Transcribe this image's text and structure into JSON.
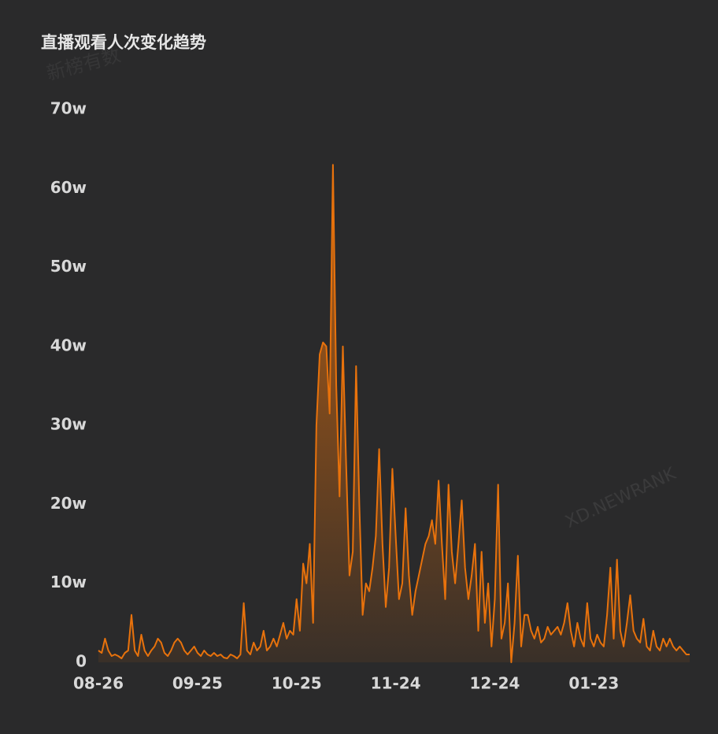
{
  "chart_data": {
    "type": "area",
    "title": "直播观看人次变化趋势",
    "watermarks": [
      "新榜有数",
      "XD.NEWRANK"
    ],
    "categories": [
      "08-26",
      null,
      null,
      null,
      null,
      null,
      null,
      null,
      null,
      null,
      null,
      null,
      null,
      null,
      null,
      null,
      null,
      null,
      null,
      null,
      null,
      null,
      null,
      null,
      null,
      null,
      null,
      null,
      null,
      null,
      "09-25",
      null,
      null,
      null,
      null,
      null,
      null,
      null,
      null,
      null,
      null,
      null,
      null,
      null,
      null,
      null,
      null,
      null,
      null,
      null,
      null,
      null,
      null,
      null,
      null,
      null,
      null,
      null,
      null,
      null,
      "10-25",
      null,
      null,
      null,
      null,
      null,
      null,
      null,
      null,
      null,
      null,
      null,
      null,
      null,
      null,
      null,
      null,
      null,
      null,
      null,
      null,
      null,
      null,
      null,
      null,
      null,
      null,
      null,
      null,
      null,
      "11-24",
      null,
      null,
      null,
      null,
      null,
      null,
      null,
      null,
      null,
      null,
      null,
      null,
      null,
      null,
      null,
      null,
      null,
      null,
      null,
      null,
      null,
      null,
      null,
      null,
      null,
      null,
      null,
      null,
      null,
      "12-24",
      null,
      null,
      null,
      null,
      null,
      null,
      null,
      null,
      null,
      null,
      null,
      null,
      null,
      null,
      null,
      null,
      null,
      null,
      null,
      null,
      null,
      null,
      null,
      null,
      null,
      null,
      null,
      null,
      null,
      "01-23",
      null,
      null,
      null,
      null,
      null,
      null,
      null,
      null,
      null,
      null,
      null,
      null,
      null,
      null,
      null,
      null,
      null,
      null,
      null,
      null,
      null,
      null,
      null,
      null,
      null,
      null,
      null,
      null,
      null
    ],
    "values": [
      1.5,
      1.2,
      3,
      1.5,
      0.8,
      1,
      0.8,
      0.5,
      1.2,
      1.5,
      6,
      1.5,
      0.8,
      3.5,
      1.5,
      0.8,
      1.5,
      2,
      3,
      2.5,
      1.2,
      0.8,
      1.5,
      2.5,
      3,
      2.5,
      1.5,
      1,
      1.5,
      2,
      1.2,
      0.8,
      1.5,
      1,
      0.8,
      1.2,
      0.8,
      1,
      0.6,
      0.5,
      1,
      0.8,
      0.5,
      1,
      7.5,
      1.5,
      1,
      2.5,
      1.5,
      2,
      4,
      1.5,
      2,
      3,
      2,
      3.5,
      5,
      3,
      4,
      3.5,
      8,
      4,
      12.5,
      10,
      15,
      5,
      30,
      39,
      40.5,
      40,
      31.5,
      63,
      35,
      21,
      40,
      25,
      11,
      14,
      37.5,
      20,
      6,
      10,
      9,
      12,
      16,
      27,
      15,
      7,
      12,
      24.5,
      16,
      8,
      10,
      19.5,
      11,
      6,
      9,
      11,
      13,
      15,
      16,
      18,
      15,
      23,
      15,
      8,
      22.5,
      14,
      10,
      15,
      20.5,
      12,
      8,
      11,
      15,
      4,
      14,
      5,
      10,
      2,
      8,
      22.5,
      3,
      5,
      10,
      0,
      5,
      13.5,
      2,
      6,
      6,
      4,
      3,
      4.5,
      2.5,
      3,
      4.5,
      3.5,
      4,
      4.5,
      3.5,
      5,
      7.5,
      4,
      2,
      5,
      3,
      2,
      7.5,
      3,
      2,
      3.5,
      2.5,
      2,
      6,
      12,
      3,
      13,
      4,
      2,
      5,
      8.5,
      4,
      3,
      2.5,
      5.5,
      2,
      1.5,
      4,
      2,
      1.5,
      3,
      2,
      3,
      2,
      1.5,
      2,
      1.5,
      1,
      1
    ],
    "color": "#e8720c",
    "ylim": [
      0,
      70
    ],
    "yticks": [
      0,
      {
        "value": 10,
        "label": "10w"
      },
      {
        "value": 20,
        "label": "20w"
      },
      {
        "value": 30,
        "label": "30w"
      },
      {
        "value": 40,
        "label": "40w"
      },
      {
        "value": 50,
        "label": "50w"
      },
      {
        "value": 60,
        "label": "60w"
      },
      {
        "value": 70,
        "label": "70w"
      }
    ],
    "grid": false
  }
}
